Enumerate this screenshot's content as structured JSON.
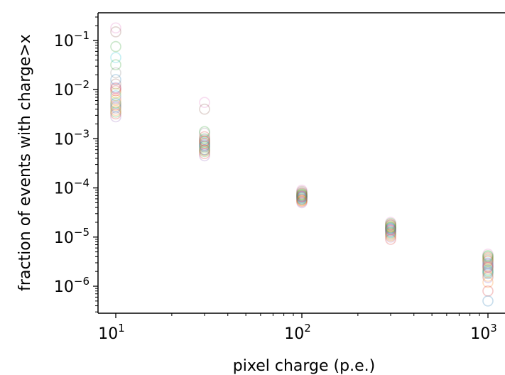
{
  "chart_data": {
    "type": "scatter",
    "xscale": "log",
    "yscale": "log",
    "xlabel": "pixel charge (p.e.)",
    "ylabel": "fraction of events with charge>x",
    "x_ticks": [
      {
        "value": 10,
        "base": "10",
        "exp": "1"
      },
      {
        "value": 100,
        "base": "10",
        "exp": "2"
      },
      {
        "value": 1000,
        "base": "10",
        "exp": "3"
      }
    ],
    "y_ticks": [
      {
        "value": 1e-06,
        "base": "10",
        "exp": "−6"
      },
      {
        "value": 1e-05,
        "base": "10",
        "exp": "−5"
      },
      {
        "value": 0.0001,
        "base": "10",
        "exp": "−4"
      },
      {
        "value": 0.001,
        "base": "10",
        "exp": "−3"
      },
      {
        "value": 0.01,
        "base": "10",
        "exp": "−2"
      },
      {
        "value": 0.1,
        "base": "10",
        "exp": "−1"
      }
    ],
    "x_categories": [
      10,
      30,
      100,
      300,
      1000
    ],
    "marker": "open-circle",
    "marker_alpha": 0.25,
    "colors": [
      "#1f77b4",
      "#ff7f0e",
      "#2ca02c",
      "#d62728",
      "#9467bd",
      "#8c564b",
      "#e377c2",
      "#7f7f7f",
      "#bcbd22",
      "#17becf"
    ],
    "series": [
      {
        "values": [
          0.0045,
          0.00075,
          6.8e-05,
          1.45e-05,
          2.8e-06
        ]
      },
      {
        "values": [
          0.0062,
          0.0009,
          7.2e-05,
          1.6e-05,
          3.2e-06
        ]
      },
      {
        "values": [
          0.0035,
          0.00055,
          5.8e-05,
          1.2e-05,
          2e-06
        ]
      },
      {
        "values": [
          0.0095,
          0.0011,
          7.8e-05,
          1.8e-05,
          3.8e-06
        ]
      },
      {
        "values": [
          0.0028,
          0.00045,
          5e-05,
          1e-05,
          1.5e-06
        ]
      },
      {
        "values": [
          0.013,
          0.0008,
          6.5e-05,
          1.5e-05,
          2.6e-06
        ]
      },
      {
        "values": [
          0.18,
          0.0055,
          9e-05,
          2e-05,
          4.5e-06
        ]
      },
      {
        "values": [
          0.022,
          0.0013,
          8e-05,
          1.7e-05,
          3.5e-06
        ]
      },
      {
        "values": [
          0.0055,
          0.00065,
          6.2e-05,
          1.3e-05,
          2.2e-06
        ]
      },
      {
        "values": [
          0.0075,
          0.00085,
          7e-05,
          1.55e-05,
          3e-06
        ]
      },
      {
        "values": [
          0.016,
          0.0006,
          6e-05,
          1.25e-05,
          1.8e-06
        ]
      },
      {
        "values": [
          0.0048,
          0.0007,
          5.6e-05,
          1.15e-05,
          1.2e-06
        ]
      },
      {
        "values": [
          0.032,
          0.001,
          7.5e-05,
          1.9e-05,
          4e-06
        ]
      },
      {
        "values": [
          0.0032,
          0.0005,
          5.3e-05,
          9e-06,
          8e-07
        ]
      },
      {
        "values": [
          0.011,
          0.00095,
          6.9e-05,
          1.4e-05,
          2.5e-06
        ]
      },
      {
        "values": [
          0.15,
          0.004,
          8.5e-05,
          1.75e-05,
          3.3e-06
        ]
      },
      {
        "values": [
          0.0068,
          0.00078,
          6.6e-05,
          1.35e-05,
          2.9e-06
        ]
      },
      {
        "values": [
          0.0042,
          0.0006,
          5.9e-05,
          1.1e-05,
          1.9e-06
        ]
      },
      {
        "values": [
          0.0085,
          0.00082,
          7.1e-05,
          1.65e-05,
          3.6e-06
        ]
      },
      {
        "values": [
          0.045,
          0.00068,
          6.3e-05,
          1.3e-05,
          2.1e-06
        ]
      },
      {
        "values": [
          0.0052,
          0.00072,
          6.4e-05,
          1.48e-05,
          5e-07
        ]
      },
      {
        "values": [
          0.0038,
          0.00058,
          5.5e-05,
          1.05e-05,
          1.6e-06
        ]
      },
      {
        "values": [
          0.075,
          0.0014,
          7.3e-05,
          1.58e-05,
          4.2e-06
        ]
      },
      {
        "values": [
          0.0105,
          0.0009,
          6.7e-05,
          1.38e-05,
          2.4e-06
        ]
      }
    ]
  }
}
